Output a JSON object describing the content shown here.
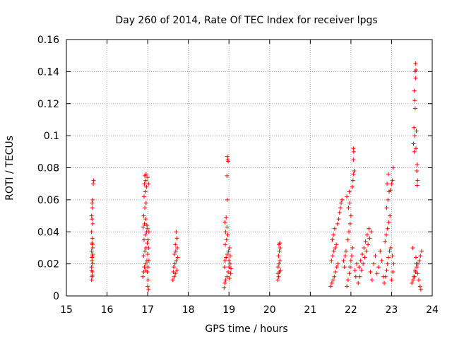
{
  "chart_data": {
    "type": "scatter",
    "title": "Day 260 of 2014, Rate Of TEC Index for receiver lpgs",
    "xlabel": "GPS time / hours",
    "ylabel": "ROTI / TECUs",
    "xlim": [
      15,
      24
    ],
    "ylim": [
      0,
      0.16
    ],
    "x_ticks": [
      "15",
      "16",
      "17",
      "18",
      "19",
      "20",
      "21",
      "22",
      "23",
      "24"
    ],
    "y_ticks": [
      "0",
      "0.02",
      "0.04",
      "0.06",
      "0.08",
      "0.1",
      "0.12",
      "0.14",
      "0.16"
    ],
    "grid": true,
    "marker": "+",
    "series": [
      {
        "name": "ROTI",
        "color": "#ff0000",
        "points": [
          [
            15.62,
            0.01
          ],
          [
            15.63,
            0.012
          ],
          [
            15.64,
            0.015
          ],
          [
            15.62,
            0.018
          ],
          [
            15.65,
            0.02
          ],
          [
            15.63,
            0.022
          ],
          [
            15.64,
            0.025
          ],
          [
            15.62,
            0.028
          ],
          [
            15.65,
            0.03
          ],
          [
            15.63,
            0.033
          ],
          [
            15.64,
            0.036
          ],
          [
            15.62,
            0.04
          ],
          [
            15.65,
            0.045
          ],
          [
            15.63,
            0.048
          ],
          [
            15.62,
            0.05
          ],
          [
            15.64,
            0.055
          ],
          [
            15.63,
            0.058
          ],
          [
            15.65,
            0.06
          ],
          [
            15.66,
            0.07
          ],
          [
            15.67,
            0.072
          ],
          [
            15.62,
            0.016
          ],
          [
            15.64,
            0.013
          ],
          [
            15.63,
            0.024
          ],
          [
            15.65,
            0.026
          ],
          [
            15.64,
            0.032
          ],
          [
            16.88,
            0.012
          ],
          [
            16.9,
            0.015
          ],
          [
            16.92,
            0.018
          ],
          [
            16.95,
            0.02
          ],
          [
            16.98,
            0.022
          ],
          [
            16.9,
            0.025
          ],
          [
            16.93,
            0.028
          ],
          [
            16.96,
            0.03
          ],
          [
            16.99,
            0.033
          ],
          [
            16.91,
            0.035
          ],
          [
            16.94,
            0.038
          ],
          [
            16.97,
            0.04
          ],
          [
            16.89,
            0.043
          ],
          [
            16.92,
            0.045
          ],
          [
            16.95,
            0.048
          ],
          [
            16.9,
            0.05
          ],
          [
            16.93,
            0.055
          ],
          [
            16.96,
            0.058
          ],
          [
            16.91,
            0.062
          ],
          [
            16.94,
            0.065
          ],
          [
            16.97,
            0.068
          ],
          [
            16.92,
            0.07
          ],
          [
            16.95,
            0.072
          ],
          [
            16.93,
            0.075
          ],
          [
            16.96,
            0.076
          ],
          [
            17.0,
            0.074
          ],
          [
            17.02,
            0.07
          ],
          [
            17.0,
            0.006
          ],
          [
            17.02,
            0.004
          ],
          [
            17.01,
            0.01
          ],
          [
            16.99,
            0.015
          ],
          [
            17.01,
            0.018
          ],
          [
            17.03,
            0.022
          ],
          [
            17.0,
            0.026
          ],
          [
            17.02,
            0.03
          ],
          [
            17.01,
            0.035
          ],
          [
            17.03,
            0.04
          ],
          [
            17.0,
            0.042
          ],
          [
            16.98,
            0.044
          ],
          [
            16.95,
            0.016
          ],
          [
            17.62,
            0.01
          ],
          [
            17.65,
            0.012
          ],
          [
            17.68,
            0.014
          ],
          [
            17.72,
            0.016
          ],
          [
            17.64,
            0.018
          ],
          [
            17.67,
            0.02
          ],
          [
            17.7,
            0.022
          ],
          [
            17.74,
            0.024
          ],
          [
            17.66,
            0.026
          ],
          [
            17.69,
            0.028
          ],
          [
            17.73,
            0.03
          ],
          [
            17.68,
            0.032
          ],
          [
            17.72,
            0.036
          ],
          [
            17.7,
            0.04
          ],
          [
            17.63,
            0.015
          ],
          [
            18.88,
            0.005
          ],
          [
            18.9,
            0.008
          ],
          [
            18.92,
            0.01
          ],
          [
            18.95,
            0.012
          ],
          [
            18.98,
            0.015
          ],
          [
            19.0,
            0.018
          ],
          [
            19.03,
            0.02
          ],
          [
            18.9,
            0.022
          ],
          [
            18.93,
            0.024
          ],
          [
            18.96,
            0.026
          ],
          [
            18.99,
            0.028
          ],
          [
            19.02,
            0.03
          ],
          [
            18.91,
            0.032
          ],
          [
            18.94,
            0.035
          ],
          [
            18.97,
            0.038
          ],
          [
            18.92,
            0.04
          ],
          [
            18.95,
            0.043
          ],
          [
            18.9,
            0.046
          ],
          [
            18.93,
            0.049
          ],
          [
            19.0,
            0.022
          ],
          [
            18.96,
            0.06
          ],
          [
            18.95,
            0.075
          ],
          [
            18.97,
            0.085
          ],
          [
            18.96,
            0.087
          ],
          [
            18.98,
            0.084
          ],
          [
            19.04,
            0.014
          ],
          [
            19.05,
            0.017
          ],
          [
            18.89,
            0.018
          ],
          [
            19.01,
            0.011
          ],
          [
            19.03,
            0.025
          ],
          [
            20.2,
            0.01
          ],
          [
            20.22,
            0.012
          ],
          [
            20.24,
            0.015
          ],
          [
            20.21,
            0.018
          ],
          [
            20.23,
            0.02
          ],
          [
            20.25,
            0.022
          ],
          [
            20.22,
            0.025
          ],
          [
            20.24,
            0.028
          ],
          [
            20.26,
            0.03
          ],
          [
            20.23,
            0.032
          ],
          [
            20.25,
            0.033
          ],
          [
            20.21,
            0.014
          ],
          [
            20.27,
            0.016
          ],
          [
            21.5,
            0.006
          ],
          [
            21.53,
            0.008
          ],
          [
            21.56,
            0.01
          ],
          [
            21.59,
            0.012
          ],
          [
            21.62,
            0.015
          ],
          [
            21.65,
            0.018
          ],
          [
            21.68,
            0.02
          ],
          [
            21.52,
            0.022
          ],
          [
            21.55,
            0.025
          ],
          [
            21.58,
            0.028
          ],
          [
            21.61,
            0.03
          ],
          [
            21.64,
            0.032
          ],
          [
            21.54,
            0.035
          ],
          [
            21.57,
            0.038
          ],
          [
            21.6,
            0.042
          ],
          [
            21.67,
            0.045
          ],
          [
            21.7,
            0.048
          ],
          [
            21.72,
            0.052
          ],
          [
            21.74,
            0.055
          ],
          [
            21.76,
            0.058
          ],
          [
            21.78,
            0.06
          ],
          [
            21.82,
            0.022
          ],
          [
            21.84,
            0.018
          ],
          [
            21.86,
            0.025
          ],
          [
            21.88,
            0.028
          ],
          [
            21.9,
            0.006
          ],
          [
            21.93,
            0.01
          ],
          [
            21.96,
            0.014
          ],
          [
            21.98,
            0.018
          ],
          [
            22.0,
            0.022
          ],
          [
            22.02,
            0.025
          ],
          [
            22.04,
            0.03
          ],
          [
            21.92,
            0.035
          ],
          [
            21.95,
            0.04
          ],
          [
            21.98,
            0.045
          ],
          [
            22.0,
            0.05
          ],
          [
            21.94,
            0.055
          ],
          [
            21.97,
            0.058
          ],
          [
            21.9,
            0.062
          ],
          [
            21.96,
            0.065
          ],
          [
            22.03,
            0.068
          ],
          [
            22.05,
            0.072
          ],
          [
            22.06,
            0.076
          ],
          [
            22.08,
            0.078
          ],
          [
            22.06,
            0.085
          ],
          [
            22.07,
            0.09
          ],
          [
            22.06,
            0.092
          ],
          [
            22.1,
            0.016
          ],
          [
            22.12,
            0.012
          ],
          [
            22.14,
            0.02
          ],
          [
            22.18,
            0.008
          ],
          [
            22.22,
            0.012
          ],
          [
            22.26,
            0.016
          ],
          [
            22.3,
            0.02
          ],
          [
            22.34,
            0.024
          ],
          [
            22.38,
            0.028
          ],
          [
            22.42,
            0.032
          ],
          [
            22.46,
            0.036
          ],
          [
            22.5,
            0.04
          ],
          [
            22.2,
            0.018
          ],
          [
            22.24,
            0.022
          ],
          [
            22.28,
            0.026
          ],
          [
            22.32,
            0.03
          ],
          [
            22.36,
            0.034
          ],
          [
            22.4,
            0.038
          ],
          [
            22.44,
            0.042
          ],
          [
            22.48,
            0.015
          ],
          [
            22.52,
            0.01
          ],
          [
            22.56,
            0.02
          ],
          [
            22.6,
            0.025
          ],
          [
            22.64,
            0.014
          ],
          [
            22.68,
            0.018
          ],
          [
            22.72,
            0.028
          ],
          [
            22.76,
            0.022
          ],
          [
            22.8,
            0.012
          ],
          [
            22.82,
            0.008
          ],
          [
            22.85,
            0.012
          ],
          [
            22.88,
            0.016
          ],
          [
            22.9,
            0.02
          ],
          [
            22.92,
            0.024
          ],
          [
            22.95,
            0.028
          ],
          [
            22.98,
            0.03
          ],
          [
            22.84,
            0.034
          ],
          [
            22.87,
            0.038
          ],
          [
            22.9,
            0.042
          ],
          [
            22.93,
            0.046
          ],
          [
            22.96,
            0.05
          ],
          [
            22.88,
            0.055
          ],
          [
            22.91,
            0.06
          ],
          [
            22.94,
            0.065
          ],
          [
            22.89,
            0.07
          ],
          [
            22.92,
            0.076
          ],
          [
            22.97,
            0.066
          ],
          [
            23.0,
            0.07
          ],
          [
            23.02,
            0.072
          ],
          [
            23.04,
            0.08
          ],
          [
            23.0,
            0.01
          ],
          [
            23.03,
            0.015
          ],
          [
            23.05,
            0.02
          ],
          [
            23.02,
            0.025
          ],
          [
            23.5,
            0.008
          ],
          [
            23.53,
            0.01
          ],
          [
            23.56,
            0.012
          ],
          [
            23.59,
            0.015
          ],
          [
            23.62,
            0.018
          ],
          [
            23.65,
            0.02
          ],
          [
            23.68,
            0.022
          ],
          [
            23.71,
            0.025
          ],
          [
            23.74,
            0.028
          ],
          [
            23.52,
            0.03
          ],
          [
            23.55,
            0.012
          ],
          [
            23.58,
            0.016
          ],
          [
            23.61,
            0.02
          ],
          [
            23.64,
            0.014
          ],
          [
            23.67,
            0.01
          ],
          [
            23.7,
            0.006
          ],
          [
            23.72,
            0.004
          ],
          [
            23.56,
            0.09
          ],
          [
            23.54,
            0.095
          ],
          [
            23.57,
            0.1
          ],
          [
            23.55,
            0.105
          ],
          [
            23.6,
            0.092
          ],
          [
            23.58,
            0.117
          ],
          [
            23.57,
            0.122
          ],
          [
            23.56,
            0.128
          ],
          [
            23.59,
            0.136
          ],
          [
            23.58,
            0.14
          ],
          [
            23.6,
            0.141
          ],
          [
            23.59,
            0.145
          ],
          [
            23.63,
            0.082
          ],
          [
            23.62,
            0.078
          ],
          [
            23.64,
            0.072
          ],
          [
            23.63,
            0.069
          ],
          [
            23.61,
            0.103
          ],
          [
            23.6,
            0.024
          ]
        ]
      }
    ]
  }
}
